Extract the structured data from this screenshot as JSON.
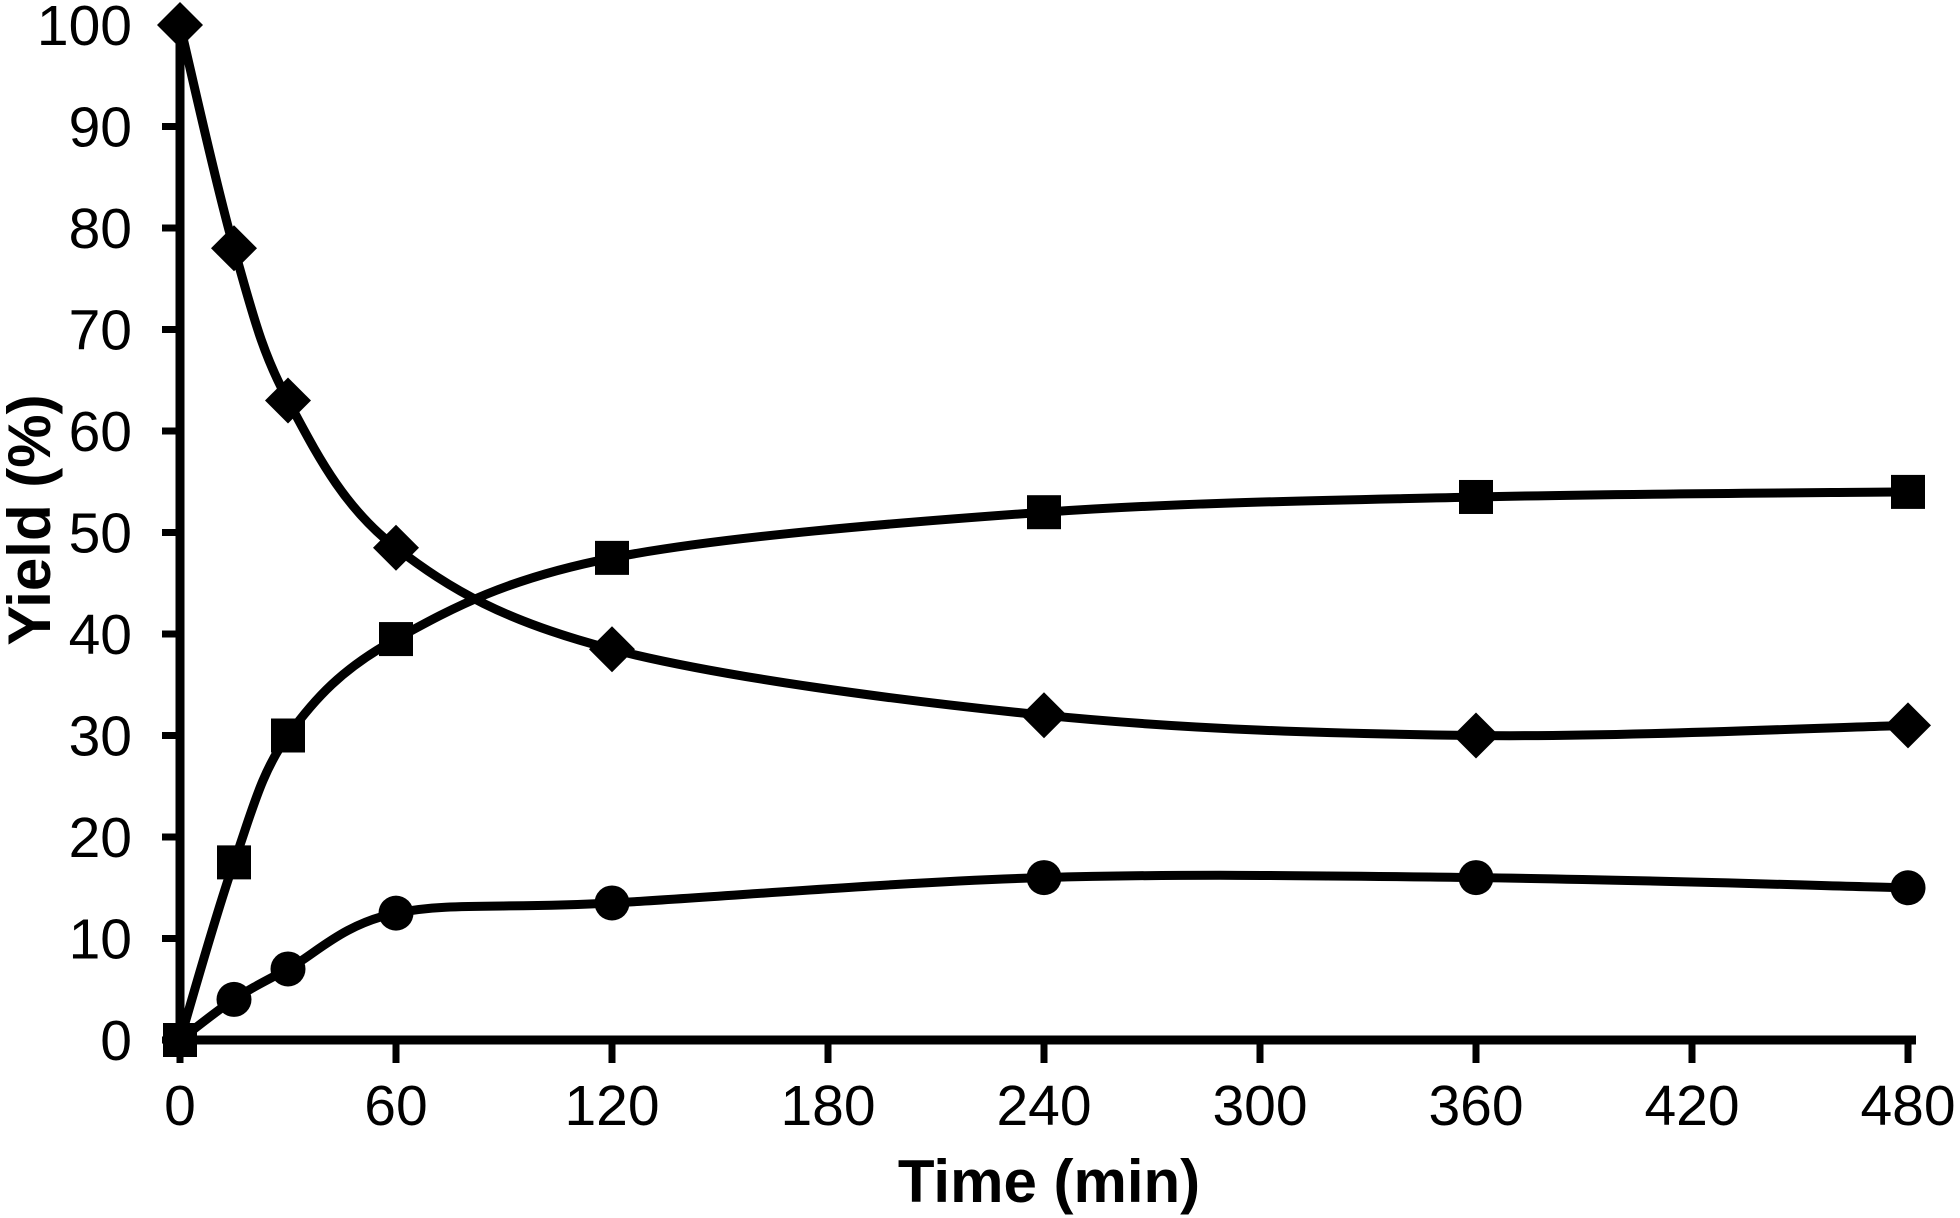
{
  "page": {
    "background_color": "#ffffff",
    "foreground_color": "#000000"
  },
  "chart_data": {
    "type": "line",
    "title": "",
    "xlabel": "Time (min)",
    "ylabel": "Yield (%)",
    "xlim": [
      0,
      480
    ],
    "ylim": [
      0,
      100
    ],
    "x_ticks": [
      0,
      60,
      120,
      180,
      240,
      300,
      360,
      420,
      480
    ],
    "y_ticks": [
      0,
      10,
      20,
      30,
      40,
      50,
      60,
      70,
      80,
      90,
      100
    ],
    "grid": false,
    "legend": "none",
    "line_color": "#000000",
    "marker_color": "#000000",
    "background": "#ffffff",
    "line_style": "smooth",
    "x": [
      0,
      15,
      30,
      60,
      120,
      240,
      360,
      480
    ],
    "series": [
      {
        "name": "diamond-series",
        "marker": "diamond",
        "values": [
          100,
          78,
          63,
          48.5,
          38.5,
          32,
          30,
          31
        ]
      },
      {
        "name": "square-series",
        "marker": "square",
        "values": [
          0,
          17.5,
          30,
          39.5,
          47.5,
          52,
          53.5,
          54
        ]
      },
      {
        "name": "circle-series",
        "marker": "circle",
        "values": [
          0,
          4,
          7,
          12.5,
          13.5,
          16,
          16,
          15
        ]
      }
    ]
  }
}
